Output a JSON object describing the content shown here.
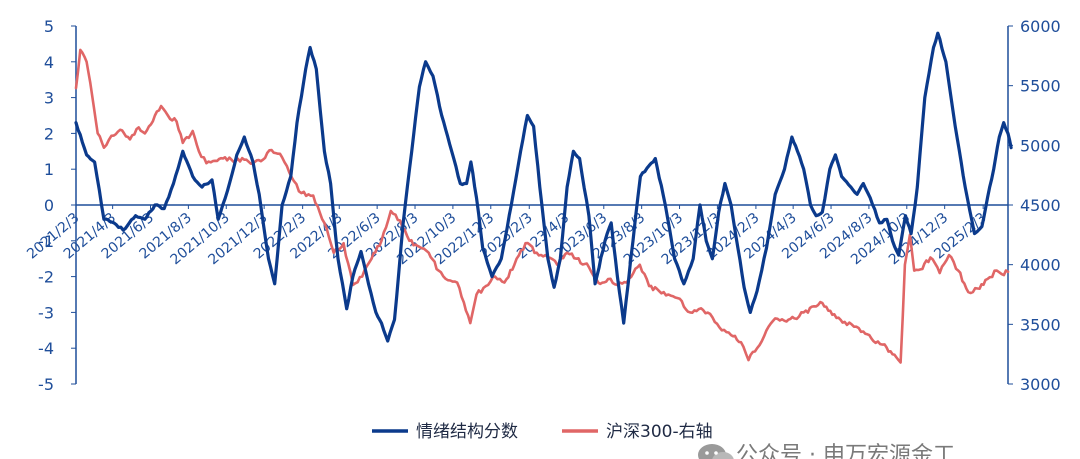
{
  "chart_data": {
    "type": "line",
    "title": "",
    "left_axis": {
      "ticks": [
        5,
        4,
        3,
        2,
        1,
        0,
        -1,
        -2,
        -3,
        -4,
        -5
      ],
      "range": [
        -5,
        5
      ]
    },
    "right_axis": {
      "ticks": [
        6000,
        5500,
        5000,
        4500,
        4000,
        3500,
        3000
      ],
      "range": [
        3000,
        6000
      ]
    },
    "x_ticks": [
      "2021/2/3",
      "2021/4/3",
      "2021/6/3",
      "2021/8/3",
      "2021/10/3",
      "2021/12/3",
      "2022/2/3",
      "2022/4/3",
      "2022/6/3",
      "2022/8/3",
      "2022/10/3",
      "2022/12/3",
      "2023/2/3",
      "2023/4/3",
      "2023/6/3",
      "2023/8/3",
      "2023/10/3",
      "2023/12/3",
      "2024/2/3",
      "2024/4/3",
      "2024/6/3",
      "2024/8/3",
      "2024/10/3",
      "2024/12/3",
      "2025/2/3"
    ],
    "x_range": [
      "2021/2/3",
      "2025/3/15"
    ],
    "grid": false,
    "legend_position": "bottom",
    "series": [
      {
        "name": "情绪结构分数",
        "axis": "left",
        "color": "#0B3A8C",
        "points": [
          [
            "2021/2/3",
            2.3
          ],
          [
            "2021/2/20",
            1.4
          ],
          [
            "2021/3/5",
            1.2
          ],
          [
            "2021/3/20",
            -0.4
          ],
          [
            "2021/4/5",
            -0.5
          ],
          [
            "2021/4/20",
            -0.7
          ],
          [
            "2021/5/10",
            -0.3
          ],
          [
            "2021/5/25",
            -0.4
          ],
          [
            "2021/6/10",
            0.0
          ],
          [
            "2021/6/25",
            -0.1
          ],
          [
            "2021/7/10",
            0.6
          ],
          [
            "2021/7/25",
            1.5
          ],
          [
            "2021/8/10",
            0.8
          ],
          [
            "2021/8/25",
            0.5
          ],
          [
            "2021/9/10",
            0.7
          ],
          [
            "2021/9/20",
            -0.4
          ],
          [
            "2021/10/5",
            0.4
          ],
          [
            "2021/10/20",
            1.4
          ],
          [
            "2021/11/1",
            1.9
          ],
          [
            "2021/11/15",
            1.2
          ],
          [
            "2021/11/25",
            0.3
          ],
          [
            "2021/12/10",
            -1.5
          ],
          [
            "2021/12/20",
            -2.2
          ],
          [
            "2022/1/1",
            0.0
          ],
          [
            "2022/1/15",
            0.8
          ],
          [
            "2022/1/25",
            2.3
          ],
          [
            "2022/2/8",
            3.8
          ],
          [
            "2022/2/15",
            4.4
          ],
          [
            "2022/2/25",
            3.8
          ],
          [
            "2022/3/10",
            1.5
          ],
          [
            "2022/3/20",
            0.6
          ],
          [
            "2022/4/1",
            -1.5
          ],
          [
            "2022/4/15",
            -2.9
          ],
          [
            "2022/4/25",
            -2.0
          ],
          [
            "2022/5/8",
            -1.3
          ],
          [
            "2022/5/20",
            -2.2
          ],
          [
            "2022/6/1",
            -3.0
          ],
          [
            "2022/6/10",
            -3.3
          ],
          [
            "2022/6/20",
            -3.8
          ],
          [
            "2022/7/1",
            -3.2
          ],
          [
            "2022/7/15",
            -0.5
          ],
          [
            "2022/8/1",
            2.0
          ],
          [
            "2022/8/10",
            3.3
          ],
          [
            "2022/8/20",
            4.0
          ],
          [
            "2022/9/1",
            3.6
          ],
          [
            "2022/9/15",
            2.5
          ],
          [
            "2022/10/1",
            1.5
          ],
          [
            "2022/10/15",
            0.6
          ],
          [
            "2022/10/25",
            0.6
          ],
          [
            "2022/11/1",
            1.2
          ],
          [
            "2022/11/10",
            0.2
          ],
          [
            "2022/11/20",
            -1.2
          ],
          [
            "2022/12/5",
            -2.0
          ],
          [
            "2022/12/20",
            -1.5
          ],
          [
            "2023/1/5",
            0.0
          ],
          [
            "2023/1/20",
            1.5
          ],
          [
            "2023/1/31",
            2.5
          ],
          [
            "2023/2/10",
            2.2
          ],
          [
            "2023/2/20",
            0.5
          ],
          [
            "2023/3/5",
            -1.5
          ],
          [
            "2023/3/15",
            -2.3
          ],
          [
            "2023/3/25",
            -1.5
          ],
          [
            "2023/4/5",
            0.5
          ],
          [
            "2023/4/15",
            1.5
          ],
          [
            "2023/4/25",
            1.3
          ],
          [
            "2023/5/10",
            -0.3
          ],
          [
            "2023/5/20",
            -2.2
          ],
          [
            "2023/6/5",
            -1.0
          ],
          [
            "2023/6/15",
            -0.5
          ],
          [
            "2023/6/25",
            -2.0
          ],
          [
            "2023/7/5",
            -3.3
          ],
          [
            "2023/7/20",
            -1.0
          ],
          [
            "2023/8/1",
            0.8
          ],
          [
            "2023/8/15",
            1.1
          ],
          [
            "2023/8/25",
            1.3
          ],
          [
            "2023/9/10",
            0.0
          ],
          [
            "2023/9/25",
            -1.5
          ],
          [
            "2023/10/10",
            -2.2
          ],
          [
            "2023/10/25",
            -1.5
          ],
          [
            "2023/11/5",
            0.0
          ],
          [
            "2023/11/15",
            -1.0
          ],
          [
            "2023/11/25",
            -1.5
          ],
          [
            "2023/12/5",
            -0.2
          ],
          [
            "2023/12/15",
            0.6
          ],
          [
            "2023/12/25",
            0.0
          ],
          [
            "2024/1/5",
            -1.2
          ],
          [
            "2024/1/15",
            -2.3
          ],
          [
            "2024/1/25",
            -3.0
          ],
          [
            "2024/2/5",
            -2.4
          ],
          [
            "2024/2/20",
            -1.2
          ],
          [
            "2024/3/5",
            0.3
          ],
          [
            "2024/3/20",
            1.0
          ],
          [
            "2024/4/1",
            1.9
          ],
          [
            "2024/4/10",
            1.5
          ],
          [
            "2024/4/20",
            1.0
          ],
          [
            "2024/5/1",
            0.0
          ],
          [
            "2024/5/10",
            -0.3
          ],
          [
            "2024/5/20",
            -0.2
          ],
          [
            "2024/6/1",
            1.0
          ],
          [
            "2024/6/10",
            1.4
          ],
          [
            "2024/6/20",
            0.8
          ],
          [
            "2024/7/5",
            0.5
          ],
          [
            "2024/7/15",
            0.3
          ],
          [
            "2024/7/25",
            0.6
          ],
          [
            "2024/8/5",
            0.2
          ],
          [
            "2024/8/20",
            -0.5
          ],
          [
            "2024/9/1",
            -0.4
          ],
          [
            "2024/9/10",
            -1.0
          ],
          [
            "2024/9/20",
            -1.4
          ],
          [
            "2024/10/1",
            -0.3
          ],
          [
            "2024/10/10",
            -0.8
          ],
          [
            "2024/10/20",
            0.5
          ],
          [
            "2024/11/1",
            3.0
          ],
          [
            "2024/11/15",
            4.4
          ],
          [
            "2024/11/22",
            4.8
          ],
          [
            "2024/12/5",
            4.0
          ],
          [
            "2024/12/20",
            2.2
          ],
          [
            "2025/1/5",
            0.5
          ],
          [
            "2025/1/20",
            -0.8
          ],
          [
            "2025/2/1",
            -0.6
          ],
          [
            "2025/2/10",
            0.2
          ],
          [
            "2025/2/20",
            1.0
          ],
          [
            "2025/3/1",
            1.9
          ],
          [
            "2025/3/8",
            2.3
          ],
          [
            "2025/3/15",
            2.0
          ],
          [
            "2025/3/20",
            1.6
          ]
        ]
      },
      {
        "name": "沪深300-右轴",
        "axis": "right",
        "color": "#E06666",
        "points": [
          [
            "2021/2/3",
            5480
          ],
          [
            "2021/2/10",
            5800
          ],
          [
            "2021/2/20",
            5700
          ],
          [
            "2021/3/1",
            5420
          ],
          [
            "2021/3/10",
            5100
          ],
          [
            "2021/3/20",
            4980
          ],
          [
            "2021/4/1",
            5080
          ],
          [
            "2021/4/15",
            5130
          ],
          [
            "2021/5/1",
            5050
          ],
          [
            "2021/5/15",
            5150
          ],
          [
            "2021/5/25",
            5100
          ],
          [
            "2021/6/10",
            5250
          ],
          [
            "2021/6/20",
            5330
          ],
          [
            "2021/7/1",
            5250
          ],
          [
            "2021/7/15",
            5200
          ],
          [
            "2021/7/25",
            5020
          ],
          [
            "2021/8/10",
            5120
          ],
          [
            "2021/8/20",
            4950
          ],
          [
            "2021/9/1",
            4850
          ],
          [
            "2021/9/15",
            4870
          ],
          [
            "2021/10/1",
            4900
          ],
          [
            "2021/10/15",
            4860
          ],
          [
            "2021/11/1",
            4880
          ],
          [
            "2021/11/15",
            4850
          ],
          [
            "2021/12/1",
            4880
          ],
          [
            "2021/12/15",
            4960
          ],
          [
            "2022/1/1",
            4900
          ],
          [
            "2022/1/20",
            4700
          ],
          [
            "2022/2/1",
            4600
          ],
          [
            "2022/2/20",
            4580
          ],
          [
            "2022/3/10",
            4350
          ],
          [
            "2022/3/25",
            4100
          ],
          [
            "2022/4/10",
            4180
          ],
          [
            "2022/4/25",
            3830
          ],
          [
            "2022/5/10",
            3900
          ],
          [
            "2022/5/25",
            4050
          ],
          [
            "2022/6/10",
            4200
          ],
          [
            "2022/6/25",
            4450
          ],
          [
            "2022/7/10",
            4370
          ],
          [
            "2022/7/25",
            4200
          ],
          [
            "2022/8/10",
            4150
          ],
          [
            "2022/8/25",
            4100
          ],
          [
            "2022/9/10",
            3950
          ],
          [
            "2022/9/25",
            3870
          ],
          [
            "2022/10/10",
            3850
          ],
          [
            "2022/10/31",
            3510
          ],
          [
            "2022/11/10",
            3750
          ],
          [
            "2022/11/25",
            3820
          ],
          [
            "2022/12/10",
            3900
          ],
          [
            "2022/12/25",
            3850
          ],
          [
            "2023/1/10",
            4000
          ],
          [
            "2023/1/28",
            4180
          ],
          [
            "2023/2/15",
            4100
          ],
          [
            "2023/3/1",
            4080
          ],
          [
            "2023/3/20",
            4000
          ],
          [
            "2023/4/5",
            4100
          ],
          [
            "2023/4/20",
            4050
          ],
          [
            "2023/5/10",
            3980
          ],
          [
            "2023/5/25",
            3850
          ],
          [
            "2023/6/10",
            3880
          ],
          [
            "2023/6/25",
            3830
          ],
          [
            "2023/7/10",
            3850
          ],
          [
            "2023/7/31",
            4000
          ],
          [
            "2023/8/15",
            3820
          ],
          [
            "2023/8/31",
            3780
          ],
          [
            "2023/9/15",
            3750
          ],
          [
            "2023/9/30",
            3720
          ],
          [
            "2023/10/20",
            3600
          ],
          [
            "2023/11/10",
            3620
          ],
          [
            "2023/11/25",
            3560
          ],
          [
            "2023/12/10",
            3450
          ],
          [
            "2023/12/25",
            3410
          ],
          [
            "2024/1/10",
            3350
          ],
          [
            "2024/1/22",
            3200
          ],
          [
            "2024/2/5",
            3300
          ],
          [
            "2024/2/20",
            3450
          ],
          [
            "2024/3/5",
            3550
          ],
          [
            "2024/3/20",
            3530
          ],
          [
            "2024/4/5",
            3550
          ],
          [
            "2024/4/20",
            3600
          ],
          [
            "2024/5/10",
            3650
          ],
          [
            "2024/5/20",
            3680
          ],
          [
            "2024/6/5",
            3580
          ],
          [
            "2024/6/25",
            3520
          ],
          [
            "2024/7/10",
            3480
          ],
          [
            "2024/7/25",
            3440
          ],
          [
            "2024/8/10",
            3360
          ],
          [
            "2024/8/25",
            3330
          ],
          [
            "2024/9/10",
            3250
          ],
          [
            "2024/9/23",
            3180
          ],
          [
            "2024/9/30",
            4000
          ],
          [
            "2024/10/8",
            4250
          ],
          [
            "2024/10/15",
            3950
          ],
          [
            "2024/10/25",
            3960
          ],
          [
            "2024/11/10",
            4060
          ],
          [
            "2024/11/25",
            3930
          ],
          [
            "2024/12/10",
            4080
          ],
          [
            "2024/12/25",
            3950
          ],
          [
            "2025/1/10",
            3770
          ],
          [
            "2025/1/25",
            3800
          ],
          [
            "2025/2/10",
            3880
          ],
          [
            "2025/2/25",
            3950
          ],
          [
            "2025/3/5",
            3920
          ],
          [
            "2025/3/15",
            3940
          ]
        ]
      }
    ]
  },
  "watermark": {
    "text": "公众号 · 申万宏源金工",
    "icon": "wechat-icon"
  }
}
